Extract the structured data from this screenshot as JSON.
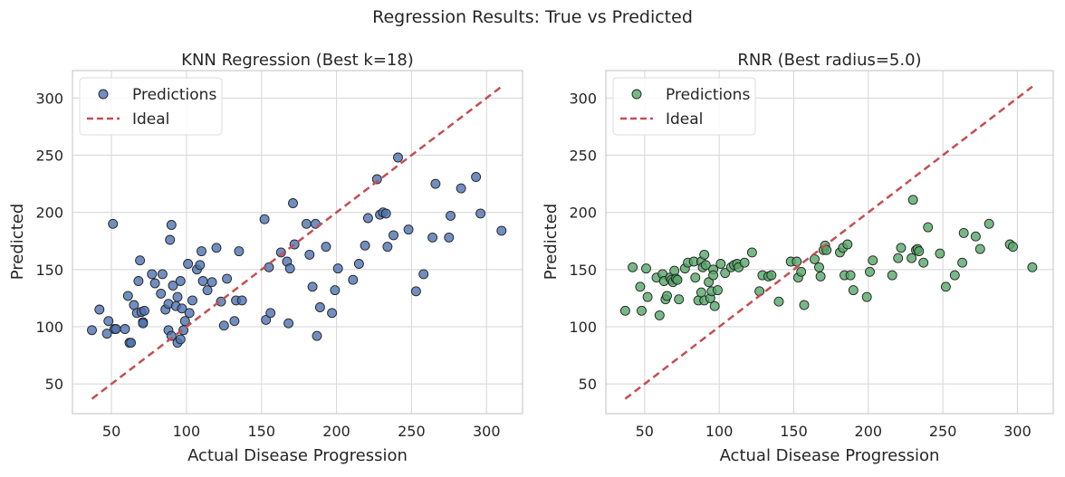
{
  "figure": {
    "title": "Regression Results: True vs Predicted"
  },
  "chart_data": [
    {
      "type": "scatter",
      "title": "KNN Regression (Best k=18)",
      "xlabel": "Actual Disease Progression",
      "ylabel": "Predicted",
      "xlim": [
        24,
        324
      ],
      "ylim": [
        24,
        324
      ],
      "xticks": [
        50,
        100,
        150,
        200,
        250,
        300
      ],
      "yticks": [
        50,
        100,
        150,
        200,
        250,
        300
      ],
      "grid": true,
      "legend": {
        "position": "top-left",
        "entries": [
          "Predictions",
          "Ideal"
        ]
      },
      "ideal_line": {
        "name": "Ideal",
        "from": [
          37,
          37
        ],
        "to": [
          310,
          310
        ],
        "color": "#c44e52",
        "style": "dashed"
      },
      "series": [
        {
          "name": "Predictions",
          "color": "#4c72b0",
          "points": [
            [
              37,
              97
            ],
            [
              42,
              115
            ],
            [
              47,
              94
            ],
            [
              48,
              105
            ],
            [
              51,
              190
            ],
            [
              52,
              98
            ],
            [
              53,
              98
            ],
            [
              59,
              98
            ],
            [
              61,
              127
            ],
            [
              62,
              86
            ],
            [
              63,
              86
            ],
            [
              65,
              119
            ],
            [
              67,
              112
            ],
            [
              68,
              140
            ],
            [
              69,
              158
            ],
            [
              70,
              113
            ],
            [
              71,
              104
            ],
            [
              71,
              103
            ],
            [
              72,
              114
            ],
            [
              77,
              146
            ],
            [
              79,
              138
            ],
            [
              83,
              129
            ],
            [
              84,
              146
            ],
            [
              86,
              115
            ],
            [
              88,
              120
            ],
            [
              88,
              97
            ],
            [
              89,
              176
            ],
            [
              90,
              189
            ],
            [
              90,
              92
            ],
            [
              91,
              136
            ],
            [
              93,
              118
            ],
            [
              94,
              126
            ],
            [
              94,
              86
            ],
            [
              96,
              140
            ],
            [
              96,
              89
            ],
            [
              97,
              116
            ],
            [
              98,
              97
            ],
            [
              99,
              105
            ],
            [
              101,
              155
            ],
            [
              102,
              112
            ],
            [
              104,
              123
            ],
            [
              107,
              150
            ],
            [
              109,
              154
            ],
            [
              110,
              166
            ],
            [
              111,
              140
            ],
            [
              114,
              132
            ],
            [
              117,
              139
            ],
            [
              120,
              169
            ],
            [
              123,
              122
            ],
            [
              125,
              101
            ],
            [
              127,
              142
            ],
            [
              132,
              105
            ],
            [
              133,
              123
            ],
            [
              135,
              166
            ],
            [
              137,
              123
            ],
            [
              152,
              194
            ],
            [
              153,
              106
            ],
            [
              155,
              152
            ],
            [
              156,
              112
            ],
            [
              163,
              165
            ],
            [
              167,
              157
            ],
            [
              168,
              103
            ],
            [
              169,
              151
            ],
            [
              171,
              208
            ],
            [
              172,
              172
            ],
            [
              180,
              190
            ],
            [
              182,
              163
            ],
            [
              184,
              135
            ],
            [
              186,
              190
            ],
            [
              187,
              92
            ],
            [
              189,
              117
            ],
            [
              193,
              170
            ],
            [
              197,
              112
            ],
            [
              199,
              132
            ],
            [
              201,
              151
            ],
            [
              211,
              141
            ],
            [
              215,
              155
            ],
            [
              219,
              171
            ],
            [
              221,
              195
            ],
            [
              227,
              229
            ],
            [
              229,
              198
            ],
            [
              231,
              200
            ],
            [
              233,
              199
            ],
            [
              234,
              170
            ],
            [
              238,
              180
            ],
            [
              241,
              248
            ],
            [
              248,
              185
            ],
            [
              253,
              131
            ],
            [
              258,
              146
            ],
            [
              264,
              178
            ],
            [
              266,
              225
            ],
            [
              275,
              178
            ],
            [
              276,
              197
            ],
            [
              283,
              221
            ],
            [
              293,
              231
            ],
            [
              296,
              199
            ],
            [
              310,
              184
            ]
          ]
        }
      ]
    },
    {
      "type": "scatter",
      "title": "RNR (Best radius=5.0)",
      "xlabel": "Actual Disease Progression",
      "ylabel": "Predicted",
      "xlim": [
        24,
        324
      ],
      "ylim": [
        24,
        324
      ],
      "xticks": [
        50,
        100,
        150,
        200,
        250,
        300
      ],
      "yticks": [
        50,
        100,
        150,
        200,
        250,
        300
      ],
      "grid": true,
      "legend": {
        "position": "top-left",
        "entries": [
          "Predictions",
          "Ideal"
        ]
      },
      "ideal_line": {
        "name": "Ideal",
        "from": [
          37,
          37
        ],
        "to": [
          310,
          310
        ],
        "color": "#c44e52",
        "style": "dashed"
      },
      "series": [
        {
          "name": "Predictions",
          "color": "#55a868",
          "points": [
            [
              37,
              114
            ],
            [
              42,
              152
            ],
            [
              47,
              135
            ],
            [
              48,
              114
            ],
            [
              51,
              151
            ],
            [
              52,
              126
            ],
            [
              58,
              143
            ],
            [
              60,
              110
            ],
            [
              62,
              146
            ],
            [
              63,
              140
            ],
            [
              64,
              124
            ],
            [
              65,
              127
            ],
            [
              67,
              143
            ],
            [
              68,
              141
            ],
            [
              69,
              139
            ],
            [
              70,
              149
            ],
            [
              71,
              142
            ],
            [
              72,
              141
            ],
            [
              73,
              124
            ],
            [
              77,
              151
            ],
            [
              79,
              156
            ],
            [
              83,
              157
            ],
            [
              84,
              143
            ],
            [
              86,
              123
            ],
            [
              88,
              130
            ],
            [
              88,
              157
            ],
            [
              89,
              152
            ],
            [
              90,
              163
            ],
            [
              90,
              123
            ],
            [
              91,
              154
            ],
            [
              93,
              139
            ],
            [
              94,
              125
            ],
            [
              95,
              131
            ],
            [
              96,
              150
            ],
            [
              96,
              145
            ],
            [
              97,
              118
            ],
            [
              99,
              132
            ],
            [
              101,
              155
            ],
            [
              104,
              147
            ],
            [
              108,
              152
            ],
            [
              110,
              154
            ],
            [
              112,
              155
            ],
            [
              113,
              152
            ],
            [
              117,
              156
            ],
            [
              122,
              165
            ],
            [
              127,
              131
            ],
            [
              129,
              145
            ],
            [
              133,
              144
            ],
            [
              135,
              145
            ],
            [
              140,
              122
            ],
            [
              148,
              157
            ],
            [
              152,
              157
            ],
            [
              153,
              143
            ],
            [
              155,
              148
            ],
            [
              157,
              119
            ],
            [
              164,
              159
            ],
            [
              167,
              152
            ],
            [
              168,
              144
            ],
            [
              170,
              167
            ],
            [
              171,
              171
            ],
            [
              172,
              167
            ],
            [
              181,
              165
            ],
            [
              183,
              169
            ],
            [
              184,
              145
            ],
            [
              186,
              172
            ],
            [
              188,
              145
            ],
            [
              190,
              132
            ],
            [
              199,
              126
            ],
            [
              201,
              148
            ],
            [
              203,
              158
            ],
            [
              216,
              145
            ],
            [
              220,
              160
            ],
            [
              222,
              169
            ],
            [
              229,
              160
            ],
            [
              230,
              211
            ],
            [
              232,
              167
            ],
            [
              233,
              168
            ],
            [
              234,
              166
            ],
            [
              237,
              156
            ],
            [
              240,
              187
            ],
            [
              248,
              164
            ],
            [
              252,
              135
            ],
            [
              258,
              145
            ],
            [
              263,
              156
            ],
            [
              264,
              182
            ],
            [
              272,
              179
            ],
            [
              275,
              168
            ],
            [
              281,
              190
            ],
            [
              295,
              172
            ],
            [
              297,
              170
            ],
            [
              310,
              152
            ]
          ]
        }
      ]
    }
  ]
}
